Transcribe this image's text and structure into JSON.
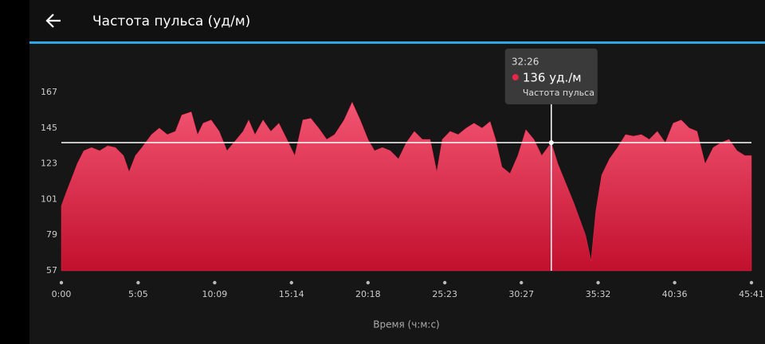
{
  "title": "Частота пульса (уд/м)",
  "chart_data": {
    "type": "area",
    "x": [
      0,
      16,
      41,
      63,
      89,
      120,
      152,
      184,
      215,
      247,
      269,
      294,
      320,
      358,
      389,
      421,
      453,
      478,
      516,
      541,
      563,
      595,
      627,
      658,
      690,
      722,
      744,
      769,
      801,
      832,
      864,
      896,
      927,
      959,
      991,
      1022,
      1054,
      1085,
      1123,
      1155,
      1187,
      1218,
      1244,
      1275,
      1307,
      1339,
      1370,
      1402,
      1434,
      1465,
      1491,
      1513,
      1544,
      1576,
      1608,
      1639,
      1671,
      1703,
      1725,
      1750,
      1782,
      1813,
      1845,
      1877,
      1908,
      1946,
      1972,
      2035,
      2082,
      2104,
      2123,
      2146,
      2177,
      2209,
      2241,
      2272,
      2304,
      2335,
      2367,
      2399,
      2430,
      2462,
      2494,
      2525,
      2557,
      2589,
      2620,
      2652,
      2684,
      2715,
      2741
    ],
    "series": [
      {
        "name": "Частота пульса",
        "color": "#e8264a",
        "values": [
          97,
          104,
          114,
          123,
          131,
          133,
          131,
          134,
          133,
          128,
          118,
          128,
          133,
          141,
          145,
          141,
          143,
          153,
          155,
          141,
          148,
          150,
          143,
          131,
          137,
          143,
          150,
          141,
          150,
          143,
          148,
          138,
          128,
          150,
          151,
          145,
          138,
          141,
          150,
          161,
          150,
          138,
          131,
          133,
          131,
          126,
          136,
          143,
          138,
          138,
          118,
          138,
          143,
          141,
          145,
          148,
          145,
          149,
          138,
          121,
          117,
          128,
          144,
          138,
          128,
          136,
          123,
          99,
          79,
          63,
          94,
          116,
          126,
          133,
          141,
          140,
          141,
          138,
          143,
          136,
          148,
          150,
          145,
          143,
          123,
          133,
          136,
          138,
          131,
          128,
          128
        ]
      }
    ],
    "xlim": [
      0,
      2741
    ],
    "ylim": [
      57,
      167
    ],
    "yticks": [
      57,
      79,
      101,
      123,
      145,
      167
    ],
    "xticks": [
      {
        "value": 0,
        "label": "0:00"
      },
      {
        "value": 305,
        "label": "5:05"
      },
      {
        "value": 609,
        "label": "10:09"
      },
      {
        "value": 914,
        "label": "15:14"
      },
      {
        "value": 1218,
        "label": "20:18"
      },
      {
        "value": 1523,
        "label": "25:23"
      },
      {
        "value": 1827,
        "label": "30:27"
      },
      {
        "value": 2132,
        "label": "35:32"
      },
      {
        "value": 2436,
        "label": "40:36"
      },
      {
        "value": 2741,
        "label": "45:41"
      }
    ],
    "x_label": "Время (ч:м:с)",
    "tooltip": {
      "x": {
        "value": 1946,
        "label": "32:26"
      },
      "value": 136,
      "value_label": "136 уд./м"
    }
  }
}
